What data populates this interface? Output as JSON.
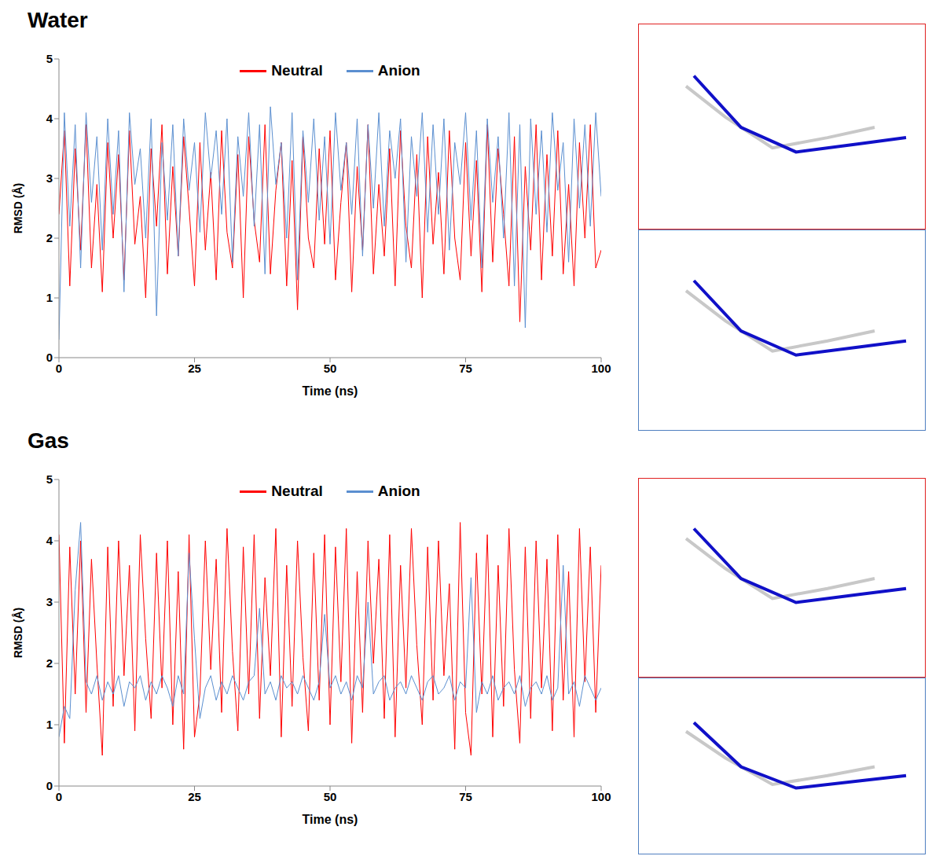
{
  "chart_data": [
    {
      "type": "line",
      "title": "Water",
      "x_label": "Time (ns)",
      "y_label": "RMSD (Å)",
      "legend": "top",
      "grid": false,
      "xlim": [
        0,
        100
      ],
      "xticks": [
        0,
        25,
        50,
        75,
        100
      ],
      "ylim": [
        0,
        5
      ],
      "yticks": [
        0,
        1,
        2,
        3,
        4,
        5
      ],
      "x": [
        0,
        1,
        2,
        3,
        4,
        5,
        6,
        7,
        8,
        9,
        10,
        11,
        12,
        13,
        14,
        15,
        16,
        17,
        18,
        19,
        20,
        21,
        22,
        23,
        24,
        25,
        26,
        27,
        28,
        29,
        30,
        31,
        32,
        33,
        34,
        35,
        36,
        37,
        38,
        39,
        40,
        41,
        42,
        43,
        44,
        45,
        46,
        47,
        48,
        49,
        50,
        51,
        52,
        53,
        54,
        55,
        56,
        57,
        58,
        59,
        60,
        61,
        62,
        63,
        64,
        65,
        66,
        67,
        68,
        69,
        70,
        71,
        72,
        73,
        74,
        75,
        76,
        77,
        78,
        79,
        80,
        81,
        82,
        83,
        84,
        85,
        86,
        87,
        88,
        89,
        90,
        91,
        92,
        93,
        94,
        95,
        96,
        97,
        98,
        99,
        100
      ],
      "series": [
        {
          "name": "Neutral",
          "color": "#ff0000",
          "values": [
            2.4,
            3.8,
            1.2,
            3.5,
            1.8,
            3.9,
            1.5,
            2.9,
            1.1,
            3.6,
            2.0,
            3.4,
            1.3,
            3.8,
            1.9,
            2.7,
            1.0,
            3.5,
            2.2,
            3.9,
            1.4,
            3.2,
            1.7,
            3.7,
            2.5,
            1.2,
            3.6,
            1.8,
            3.1,
            1.3,
            3.8,
            2.1,
            1.5,
            3.4,
            1.0,
            3.7,
            2.3,
            1.6,
            3.9,
            1.4,
            2.8,
            3.6,
            1.2,
            3.3,
            0.8,
            3.7,
            2.0,
            1.5,
            3.5,
            1.9,
            3.8,
            1.3,
            2.6,
            3.6,
            1.1,
            3.2,
            1.8,
            3.9,
            1.4,
            2.9,
            1.7,
            3.5,
            1.2,
            3.8,
            2.2,
            1.5,
            3.4,
            1.0,
            3.7,
            1.9,
            3.1,
            1.4,
            3.8,
            2.0,
            1.3,
            3.6,
            1.7,
            3.3,
            1.1,
            3.9,
            1.6,
            3.5,
            2.4,
            1.2,
            3.7,
            0.6,
            3.2,
            1.8,
            3.9,
            1.3,
            3.4,
            1.7,
            3.8,
            1.4,
            2.9,
            1.2,
            3.6,
            2.0,
            3.9,
            1.5,
            1.8
          ]
        },
        {
          "name": "Anion",
          "color": "#5b8fd0",
          "values": [
            0.3,
            4.1,
            2.2,
            3.9,
            1.5,
            4.1,
            2.6,
            3.7,
            1.8,
            4.0,
            2.4,
            3.8,
            1.1,
            4.1,
            2.9,
            3.5,
            2.0,
            4.0,
            0.7,
            3.6,
            2.3,
            3.9,
            1.7,
            4.0,
            2.8,
            3.6,
            2.1,
            4.1,
            3.0,
            3.8,
            2.4,
            4.0,
            1.6,
            3.7,
            2.7,
            4.1,
            2.2,
            3.9,
            1.4,
            4.2,
            2.9,
            3.6,
            2.0,
            4.1,
            1.3,
            3.8,
            2.6,
            4.0,
            2.3,
            3.7,
            1.9,
            4.1,
            2.8,
            3.6,
            2.4,
            4.0,
            1.7,
            3.9,
            2.5,
            4.1,
            2.2,
            3.8,
            3.0,
            4.0,
            1.6,
            3.7,
            2.7,
            4.1,
            2.1,
            3.9,
            2.4,
            4.0,
            1.8,
            3.6,
            2.9,
            4.1,
            2.3,
            3.8,
            1.5,
            4.0,
            2.6,
            3.7,
            2.0,
            4.1,
            1.2,
            3.9,
            0.5,
            4.0,
            2.4,
            3.8,
            2.1,
            4.1,
            2.8,
            3.6,
            1.6,
            4.0,
            2.5,
            3.9,
            2.2,
            4.1,
            2.7
          ]
        }
      ]
    },
    {
      "type": "line",
      "title": "Gas",
      "x_label": "Time (ns)",
      "y_label": "RMSD (Å)",
      "legend": "top",
      "grid": false,
      "xlim": [
        0,
        100
      ],
      "xticks": [
        0,
        25,
        50,
        75,
        100
      ],
      "ylim": [
        0,
        5
      ],
      "yticks": [
        0,
        1,
        2,
        3,
        4,
        5
      ],
      "x": [
        0,
        1,
        2,
        3,
        4,
        5,
        6,
        7,
        8,
        9,
        10,
        11,
        12,
        13,
        14,
        15,
        16,
        17,
        18,
        19,
        20,
        21,
        22,
        23,
        24,
        25,
        26,
        27,
        28,
        29,
        30,
        31,
        32,
        33,
        34,
        35,
        36,
        37,
        38,
        39,
        40,
        41,
        42,
        43,
        44,
        45,
        46,
        47,
        48,
        49,
        50,
        51,
        52,
        53,
        54,
        55,
        56,
        57,
        58,
        59,
        60,
        61,
        62,
        63,
        64,
        65,
        66,
        67,
        68,
        69,
        70,
        71,
        72,
        73,
        74,
        75,
        76,
        77,
        78,
        79,
        80,
        81,
        82,
        83,
        84,
        85,
        86,
        87,
        88,
        89,
        90,
        91,
        92,
        93,
        94,
        95,
        96,
        97,
        98,
        99,
        100
      ],
      "series": [
        {
          "name": "Neutral",
          "color": "#ff0000",
          "values": [
            4.1,
            0.7,
            3.9,
            1.5,
            4.0,
            1.2,
            3.7,
            2.0,
            0.5,
            3.9,
            1.3,
            4.0,
            1.8,
            3.6,
            0.9,
            4.1,
            2.4,
            1.1,
            3.8,
            1.6,
            4.0,
            1.0,
            3.5,
            0.6,
            4.1,
            0.8,
            1.5,
            4.0,
            1.9,
            3.7,
            1.2,
            4.2,
            2.2,
            0.9,
            3.9,
            1.5,
            4.1,
            1.1,
            3.4,
            1.8,
            4.2,
            0.8,
            3.6,
            1.3,
            4.0,
            2.1,
            0.9,
            3.8,
            1.4,
            4.1,
            1.0,
            3.9,
            1.7,
            4.2,
            0.7,
            3.5,
            1.2,
            4.0,
            2.0,
            3.7,
            1.1,
            4.1,
            0.8,
            3.6,
            1.6,
            4.2,
            2.3,
            1.0,
            3.9,
            1.4,
            4.0,
            1.8,
            3.3,
            0.6,
            4.3,
            1.2,
            0.5,
            3.8,
            1.5,
            4.1,
            0.8,
            3.6,
            1.3,
            4.2,
            1.9,
            0.7,
            3.9,
            1.1,
            4.0,
            1.6,
            3.7,
            0.9,
            4.1,
            1.4,
            3.5,
            0.8,
            4.2,
            1.7,
            3.9,
            1.2,
            3.6
          ]
        },
        {
          "name": "Anion",
          "color": "#5b8fd0",
          "values": [
            0.8,
            1.3,
            1.1,
            3.2,
            4.3,
            1.7,
            1.5,
            1.8,
            1.4,
            1.7,
            1.5,
            1.8,
            1.3,
            1.7,
            1.6,
            1.8,
            1.4,
            1.7,
            1.5,
            1.8,
            1.6,
            1.3,
            1.8,
            1.5,
            3.8,
            2.4,
            1.1,
            1.6,
            1.8,
            1.4,
            1.7,
            1.5,
            1.8,
            1.6,
            1.4,
            1.7,
            1.8,
            2.9,
            1.5,
            1.7,
            1.4,
            1.8,
            1.6,
            1.7,
            1.5,
            1.8,
            1.6,
            1.4,
            1.7,
            2.8,
            1.6,
            1.8,
            1.5,
            1.7,
            1.4,
            1.8,
            1.6,
            3.0,
            1.5,
            1.7,
            1.8,
            1.4,
            1.6,
            1.7,
            1.5,
            1.8,
            1.6,
            1.4,
            1.7,
            1.8,
            1.5,
            1.6,
            1.8,
            1.4,
            1.7,
            1.6,
            3.4,
            1.2,
            1.7,
            1.5,
            1.8,
            1.4,
            1.6,
            1.7,
            1.5,
            1.8,
            1.3,
            1.6,
            1.7,
            1.5,
            1.8,
            1.4,
            1.6,
            3.6,
            1.5,
            1.7,
            1.3,
            1.8,
            1.6,
            1.4,
            1.6
          ]
        }
      ]
    }
  ]
}
